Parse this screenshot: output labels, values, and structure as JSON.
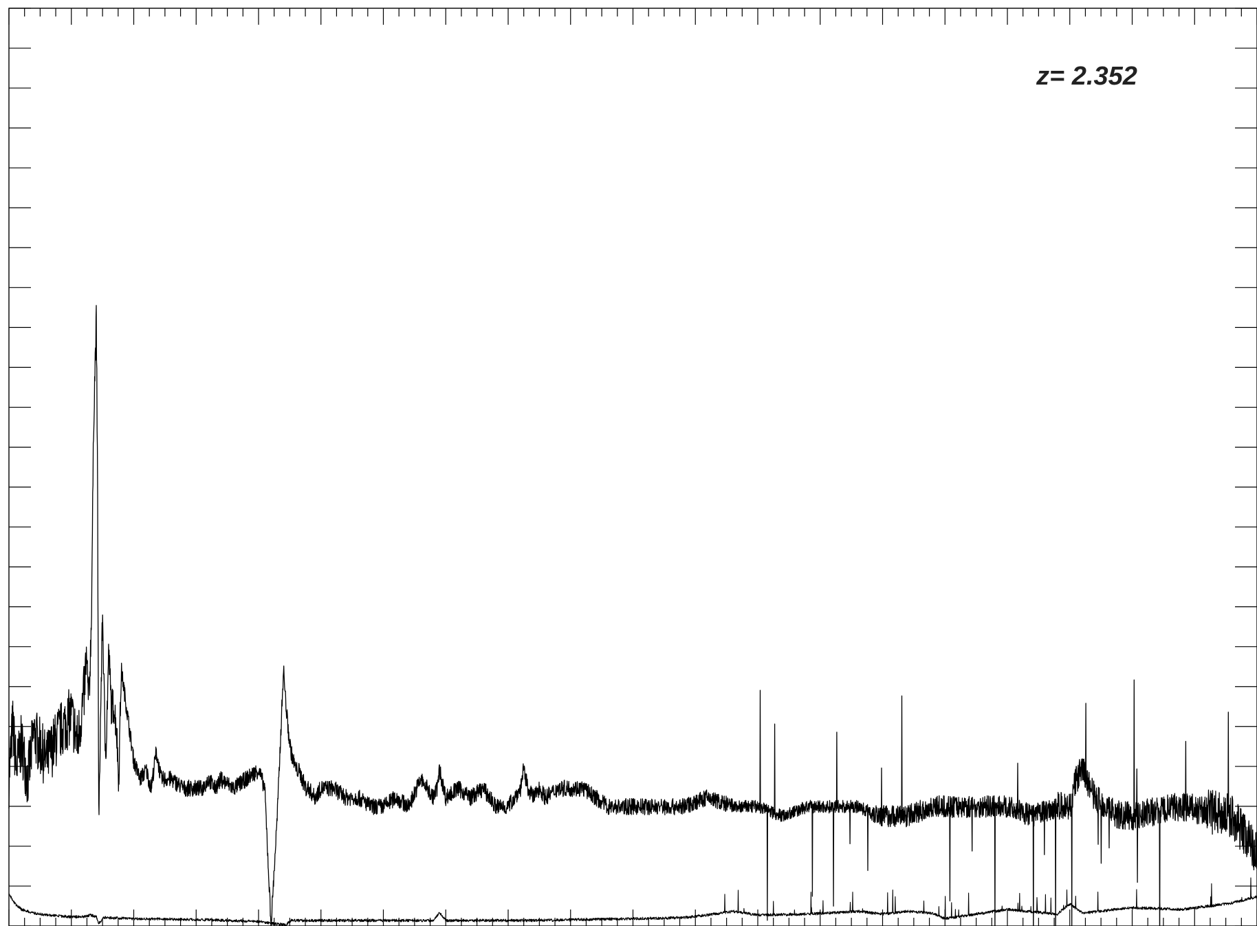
{
  "chart_data": {
    "type": "line",
    "title": "",
    "xlabel": "",
    "ylabel": "",
    "annotation": "z= 2.352",
    "colors": {
      "line": "#000000",
      "axes": "#000000",
      "background": "#ffffff"
    },
    "grid": false,
    "x_ticks": {
      "major": 20,
      "minor_per_major": 4
    },
    "y_ticks": {
      "major": 23,
      "minor_per_major": 0
    },
    "xlim": [
      0,
      1000
    ],
    "ylim": [
      0,
      100
    ],
    "series": [
      {
        "key": "flux",
        "x": [
          0,
          3,
          6,
          10,
          15,
          20,
          30,
          40,
          50,
          55,
          60,
          62,
          64,
          66,
          68,
          70,
          71,
          72,
          73,
          75,
          77,
          78,
          80,
          82,
          84,
          86,
          88,
          90,
          95,
          100,
          105,
          110,
          114,
          118,
          122,
          130,
          140,
          150,
          155,
          160,
          165,
          170,
          180,
          190,
          200,
          205,
          210,
          215,
          220,
          222,
          224,
          226,
          228,
          230,
          232,
          235,
          238,
          240,
          245,
          250,
          260,
          270,
          280,
          290,
          300,
          310,
          320,
          330,
          340,
          343,
          345,
          350,
          360,
          370,
          380,
          390,
          400,
          405,
          410,
          412,
          414,
          416,
          420,
          425,
          430,
          440,
          460,
          480,
          500,
          540,
          560,
          580,
          600,
          620,
          640,
          660,
          680,
          700,
          720,
          740,
          760,
          780,
          800,
          820,
          840,
          850,
          855,
          860,
          870,
          880,
          890,
          900,
          940,
          980,
          1000
        ],
        "y": [
          16,
          22,
          17,
          20,
          16,
          21,
          18,
          21,
          23,
          20,
          25,
          29,
          24,
          33,
          56,
          66,
          48,
          10,
          20,
          34,
          20,
          20,
          30,
          24,
          24,
          22,
          16,
          28,
          23,
          18,
          16,
          17,
          15,
          19,
          16,
          16,
          15,
          15,
          15,
          16,
          15,
          16,
          15,
          16,
          17,
          15,
          0,
          12,
          28,
          24,
          21,
          19,
          18,
          17,
          17,
          16,
          15,
          15,
          14,
          15,
          15,
          14,
          14,
          13,
          13,
          14,
          13,
          16,
          14,
          15,
          17,
          14,
          15,
          14,
          15,
          13,
          13,
          14,
          15,
          17,
          16,
          15,
          14,
          15,
          14,
          15,
          15,
          13,
          13,
          13,
          14,
          13,
          13,
          12,
          13,
          13,
          13,
          12,
          12,
          13,
          13,
          13,
          13,
          12,
          13,
          13,
          16,
          17,
          14,
          13,
          12,
          12,
          13,
          12,
          8
        ]
      },
      {
        "key": "error",
        "x": [
          0,
          5,
          10,
          20,
          30,
          40,
          50,
          60,
          65,
          70,
          72,
          74,
          76,
          80,
          100,
          150,
          200,
          222,
          226,
          230,
          260,
          300,
          340,
          345,
          350,
          380,
          420,
          460,
          500,
          540,
          560,
          580,
          600,
          640,
          680,
          700,
          720,
          740,
          750,
          760,
          800,
          840,
          850,
          860,
          900,
          940,
          980,
          1000
        ],
        "y": [
          3.5,
          2.4,
          1.8,
          1.4,
          1.2,
          1.1,
          1.0,
          1.0,
          1.2,
          1.0,
          0.3,
          0.6,
          0.9,
          0.9,
          0.8,
          0.7,
          0.5,
          0.1,
          0.6,
          0.6,
          0.6,
          0.6,
          0.6,
          1.5,
          0.6,
          0.6,
          0.6,
          0.7,
          0.8,
          0.9,
          1.2,
          1.6,
          1.2,
          1.3,
          1.6,
          1.3,
          1.6,
          1.4,
          0.8,
          1.0,
          1.8,
          1.3,
          2.4,
          1.4,
          2.0,
          1.8,
          2.5,
          3.2
        ]
      }
    ]
  }
}
